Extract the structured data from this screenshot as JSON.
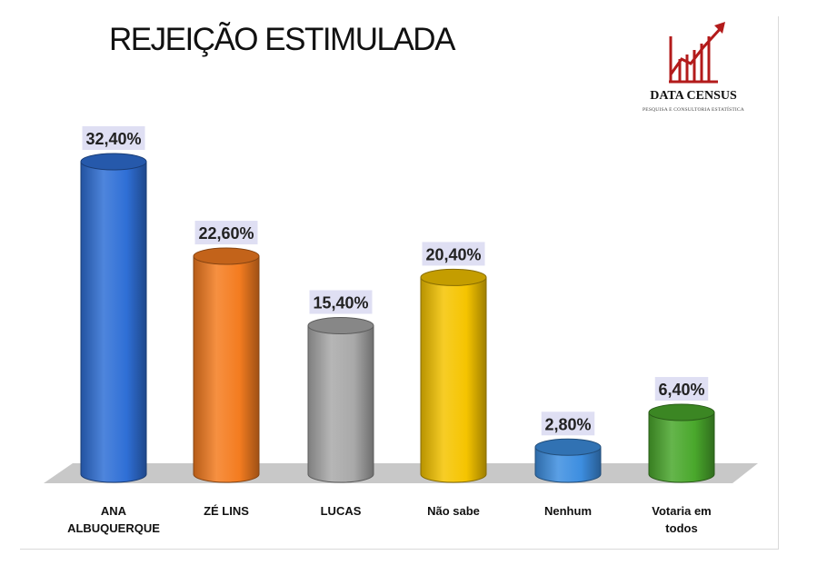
{
  "title": "REJEIÇÃO ESTIMULADA",
  "logo": {
    "name": "DATA CENSUS",
    "tagline": "PESQUISA E CONSULTORIA ESTATÍSTICA",
    "icon": "bar-chart-arrow-icon",
    "color": "#b31b1b"
  },
  "chart_data": {
    "type": "bar",
    "title": "REJEIÇÃO ESTIMULADA",
    "categories": [
      [
        "ANA",
        "ALBUQUERQUE"
      ],
      [
        "ZÉ LINS"
      ],
      [
        "LUCAS"
      ],
      [
        "Não sabe"
      ],
      [
        "Nenhum"
      ],
      [
        "Votaria em",
        "todos"
      ]
    ],
    "values": [
      32.4,
      22.6,
      15.4,
      20.4,
      2.8,
      6.4
    ],
    "data_labels": [
      "32,40%",
      "22,60%",
      "15,40%",
      "20,40%",
      "2,80%",
      "6,40%"
    ],
    "colors": [
      "#2f6fd6",
      "#f47c20",
      "#a9a9a9",
      "#f5c400",
      "#3d8ee0",
      "#4aa82c"
    ],
    "ylim": [
      0,
      35
    ],
    "grid": false,
    "legend": "none"
  }
}
